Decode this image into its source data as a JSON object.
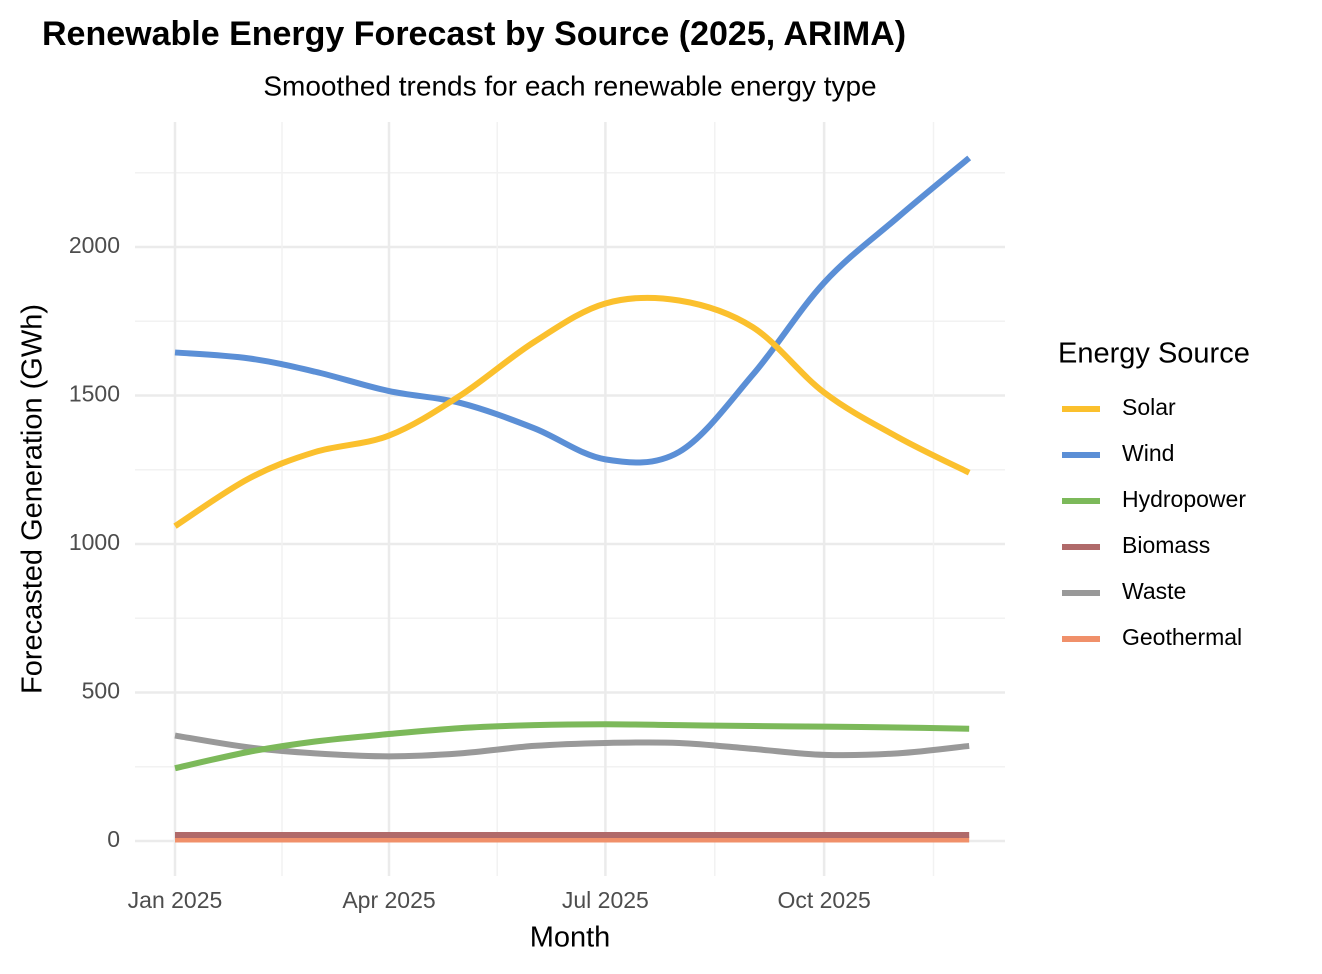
{
  "chart_data": {
    "type": "line",
    "title": "Renewable Energy Forecast by Source (2025, ARIMA)",
    "subtitle": "Smoothed trends for each renewable energy type",
    "x_label": "Month",
    "y_label": "Forecasted Generation (GWh)",
    "legend_title": "Energy Source",
    "legend_position": "right",
    "grid": true,
    "x": [
      "2025-01",
      "2025-02",
      "2025-03",
      "2025-04",
      "2025-05",
      "2025-06",
      "2025-07",
      "2025-08",
      "2025-09",
      "2025-10",
      "2025-11",
      "2025-12"
    ],
    "xticks": [
      {
        "value": "2025-01",
        "label": "Jan 2025"
      },
      {
        "value": "2025-04",
        "label": "Apr 2025"
      },
      {
        "value": "2025-07",
        "label": "Jul 2025"
      },
      {
        "value": "2025-10",
        "label": "Oct 2025"
      }
    ],
    "ylim": [
      -118,
      2421
    ],
    "yticks": [
      0,
      500,
      1000,
      1500,
      2000
    ],
    "series": [
      {
        "name": "Solar",
        "color": "#fbc02d",
        "values": [
          1060,
          1220,
          1310,
          1365,
          1500,
          1680,
          1810,
          1820,
          1730,
          1510,
          1360,
          1240
        ]
      },
      {
        "name": "Wind",
        "color": "#5b8fd6",
        "values": [
          1645,
          1625,
          1580,
          1515,
          1475,
          1390,
          1285,
          1310,
          1570,
          1880,
          2100,
          2300
        ]
      },
      {
        "name": "Hydropower",
        "color": "#7cb95a",
        "values": [
          245,
          300,
          335,
          360,
          380,
          390,
          393,
          390,
          387,
          385,
          382,
          378
        ]
      },
      {
        "name": "Biomass",
        "color": "#b06a6a",
        "values": [
          20,
          20,
          20,
          20,
          20,
          20,
          20,
          20,
          20,
          20,
          20,
          20
        ]
      },
      {
        "name": "Waste",
        "color": "#999999",
        "values": [
          355,
          315,
          295,
          285,
          295,
          320,
          330,
          330,
          310,
          290,
          295,
          320
        ]
      },
      {
        "name": "Geothermal",
        "color": "#f0906a",
        "values": [
          5,
          5,
          5,
          5,
          5,
          5,
          5,
          5,
          5,
          5,
          5,
          5
        ]
      }
    ]
  }
}
